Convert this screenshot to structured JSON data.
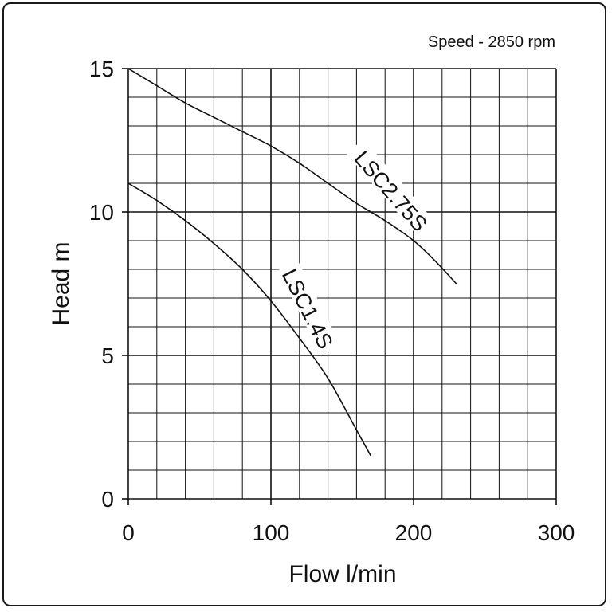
{
  "chart_data": {
    "type": "line",
    "annotation": "Speed - 2850 rpm",
    "xlabel": "Flow l/min",
    "ylabel": "Head m",
    "xlim": [
      0,
      300
    ],
    "ylim": [
      0,
      15
    ],
    "x_ticks": [
      "0",
      "100",
      "200",
      "300"
    ],
    "y_ticks": [
      "0",
      "5",
      "10",
      "15"
    ],
    "x_minor_step": 20,
    "y_minor_step": 1,
    "x_major_step": 100,
    "y_major_step": 5,
    "grid": true,
    "series": [
      {
        "name": "LSC2.75S",
        "x": [
          0,
          20,
          40,
          60,
          80,
          100,
          120,
          140,
          160,
          180,
          200,
          215,
          230
        ],
        "y": [
          15,
          14.4,
          13.8,
          13.3,
          12.8,
          12.3,
          11.7,
          11.0,
          10.3,
          9.7,
          9.0,
          8.3,
          7.5
        ]
      },
      {
        "name": "LSC1.4S",
        "x": [
          0,
          20,
          40,
          60,
          80,
          100,
          120,
          140,
          160,
          170
        ],
        "y": [
          11,
          10.4,
          9.7,
          8.9,
          8.0,
          6.9,
          5.6,
          4.2,
          2.4,
          1.5
        ]
      }
    ]
  }
}
